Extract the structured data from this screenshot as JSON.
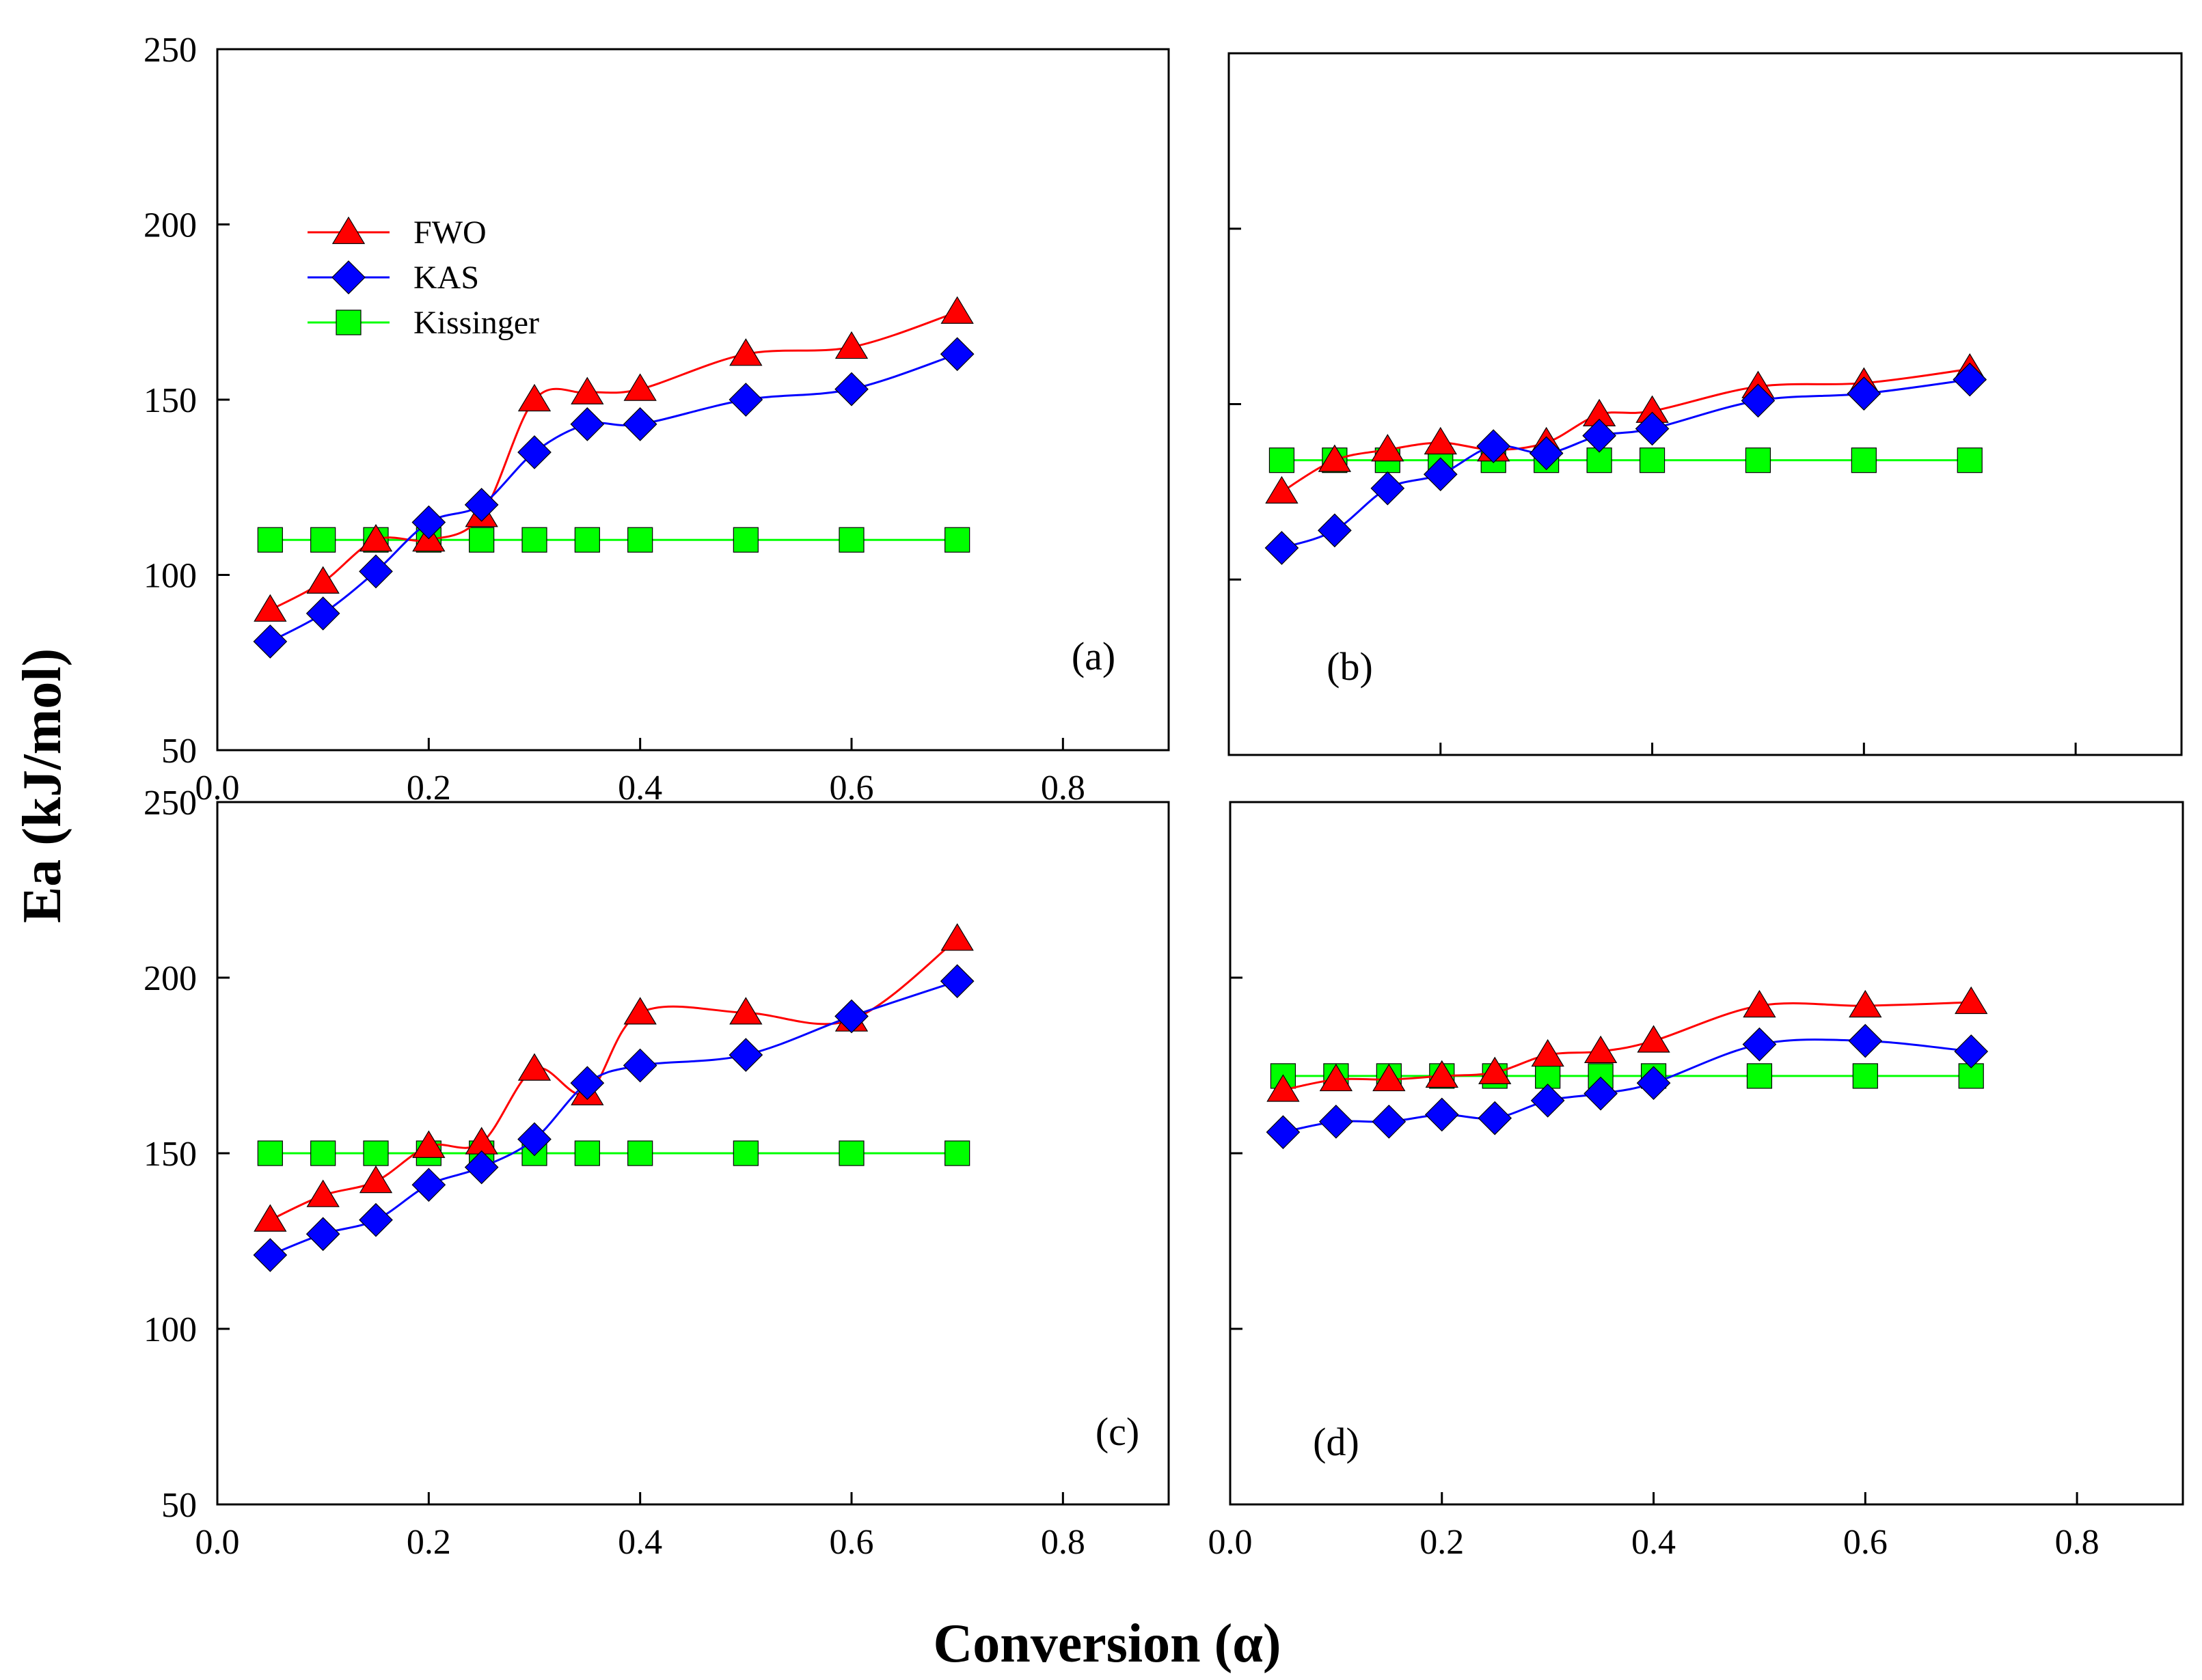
{
  "figure": {
    "ylabel": "Ea (kJ/mol)",
    "xlabel": "Conversion (α)"
  },
  "legend": [
    {
      "name": "FWO",
      "color": "#ff0000",
      "marker": "triangle"
    },
    {
      "name": "KAS",
      "color": "#0000ff",
      "marker": "diamond"
    },
    {
      "name": "Kissinger",
      "color": "#00ff00",
      "marker": "square"
    }
  ],
  "chart_data": [
    {
      "type": "line",
      "panel_label": "(a)",
      "xlim": [
        0,
        0.9
      ],
      "ylim": [
        50,
        250
      ],
      "xticks": [
        "0.0",
        "0.2",
        "0.4",
        "0.6",
        "0.8"
      ],
      "yticks": [
        "50",
        "100",
        "150",
        "200",
        "250"
      ],
      "x": [
        0.05,
        0.1,
        0.15,
        0.2,
        0.25,
        0.3,
        0.35,
        0.4,
        0.5,
        0.6,
        0.7
      ],
      "series": [
        {
          "name": "FWO",
          "values": [
            90,
            98,
            110,
            110,
            117,
            150,
            152,
            153,
            163,
            165,
            175
          ]
        },
        {
          "name": "KAS",
          "values": [
            81,
            89,
            101,
            115,
            120,
            135,
            143,
            143,
            150,
            153,
            163
          ]
        },
        {
          "name": "Kissinger",
          "values": [
            110,
            110,
            110,
            110,
            110,
            110,
            110,
            110,
            110,
            110,
            110
          ]
        }
      ]
    },
    {
      "type": "line",
      "panel_label": "(b)",
      "xlim": [
        0,
        0.9
      ],
      "ylim": [
        50,
        250
      ],
      "xticks": [],
      "yticks": [],
      "x": [
        0.05,
        0.1,
        0.15,
        0.2,
        0.25,
        0.3,
        0.35,
        0.4,
        0.5,
        0.6,
        0.7
      ],
      "series": [
        {
          "name": "FWO",
          "values": [
            125,
            134,
            137,
            139,
            137,
            139,
            147,
            148,
            155,
            156,
            160
          ]
        },
        {
          "name": "KAS",
          "values": [
            109,
            114,
            126,
            130,
            138,
            136,
            141,
            143,
            151,
            153,
            157
          ]
        },
        {
          "name": "Kissinger",
          "values": [
            134,
            134,
            134,
            134,
            134,
            134,
            134,
            134,
            134,
            134,
            134
          ]
        }
      ]
    },
    {
      "type": "line",
      "panel_label": "(c)",
      "xlim": [
        0,
        0.9
      ],
      "ylim": [
        50,
        250
      ],
      "xticks": [
        "0.0",
        "0.2",
        "0.4",
        "0.6",
        "0.8"
      ],
      "yticks": [
        "50",
        "100",
        "150",
        "200",
        "250"
      ],
      "x": [
        0.05,
        0.1,
        0.15,
        0.2,
        0.25,
        0.3,
        0.35,
        0.4,
        0.5,
        0.6,
        0.7
      ],
      "series": [
        {
          "name": "FWO",
          "values": [
            131,
            138,
            142,
            152,
            153,
            174,
            167,
            190,
            190,
            188,
            211
          ]
        },
        {
          "name": "KAS",
          "values": [
            121,
            127,
            131,
            141,
            146,
            154,
            170,
            175,
            178,
            189,
            199
          ]
        },
        {
          "name": "Kissinger",
          "values": [
            150,
            150,
            150,
            150,
            150,
            150,
            150,
            150,
            150,
            150,
            150
          ]
        }
      ]
    },
    {
      "type": "line",
      "panel_label": "(d)",
      "xlim": [
        0,
        0.9
      ],
      "ylim": [
        50,
        250
      ],
      "xticks": [
        "0.0",
        "0.2",
        "0.4",
        "0.6",
        "0.8"
      ],
      "yticks": [],
      "x": [
        0.05,
        0.1,
        0.15,
        0.2,
        0.25,
        0.3,
        0.35,
        0.4,
        0.5,
        0.6,
        0.7
      ],
      "series": [
        {
          "name": "FWO",
          "values": [
            168,
            171,
            171,
            172,
            173,
            178,
            179,
            182,
            192,
            192,
            193
          ]
        },
        {
          "name": "KAS",
          "values": [
            156,
            159,
            159,
            161,
            160,
            165,
            167,
            170,
            181,
            182,
            179
          ]
        },
        {
          "name": "Kissinger",
          "values": [
            172,
            172,
            172,
            172,
            172,
            172,
            172,
            172,
            172,
            172,
            172
          ]
        }
      ]
    }
  ]
}
